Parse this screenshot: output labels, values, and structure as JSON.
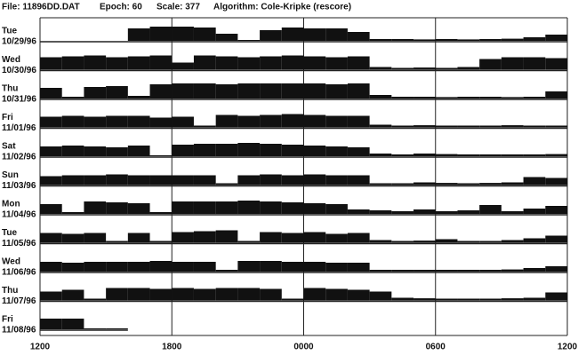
{
  "chart_data": {
    "type": "actogram",
    "header": [
      "File: 11896DD.DAT",
      "Epoch: 60",
      "Scale: 377",
      "Algorithm: Cole-Kripke (rescore)"
    ],
    "xlim": [
      0,
      24
    ],
    "ylim": [
      0,
      100
    ],
    "color": "#111111",
    "xticks": [
      {
        "value": 0,
        "label": "1200"
      },
      {
        "value": 6,
        "label": "1800"
      },
      {
        "value": 12,
        "label": "0000"
      },
      {
        "value": 18,
        "label": "0600"
      },
      {
        "value": 24,
        "label": "1200"
      }
    ],
    "rows": [
      {
        "day": "Tue",
        "date": "10/29/96",
        "values": [
          0,
          0,
          0,
          0,
          70,
          80,
          80,
          75,
          40,
          5,
          60,
          75,
          70,
          70,
          50,
          10,
          10,
          8,
          10,
          8,
          10,
          12,
          20,
          35
        ]
      },
      {
        "day": "Wed",
        "date": "10/30/96",
        "values": [
          70,
          75,
          80,
          70,
          75,
          80,
          40,
          80,
          75,
          70,
          75,
          80,
          75,
          70,
          75,
          15,
          10,
          12,
          10,
          15,
          60,
          70,
          70,
          65
        ]
      },
      {
        "day": "Thu",
        "date": "10/31/96",
        "values": [
          60,
          10,
          65,
          70,
          15,
          80,
          85,
          85,
          80,
          85,
          85,
          85,
          85,
          80,
          85,
          20,
          10,
          10,
          8,
          10,
          10,
          8,
          10,
          40
        ]
      },
      {
        "day": "Fri",
        "date": "11/01/96",
        "values": [
          60,
          65,
          60,
          65,
          65,
          55,
          60,
          10,
          70,
          65,
          70,
          75,
          70,
          65,
          65,
          15,
          10,
          12,
          10,
          10,
          10,
          12,
          10,
          10
        ]
      },
      {
        "day": "Sat",
        "date": "11/02/96",
        "values": [
          55,
          60,
          55,
          50,
          60,
          5,
          65,
          70,
          70,
          75,
          70,
          65,
          60,
          55,
          50,
          15,
          10,
          15,
          12,
          10,
          10,
          10,
          10,
          12
        ]
      },
      {
        "day": "Sun",
        "date": "11/03/96",
        "values": [
          50,
          55,
          55,
          60,
          55,
          55,
          55,
          55,
          10,
          55,
          60,
          55,
          60,
          55,
          55,
          10,
          10,
          15,
          12,
          10,
          12,
          15,
          45,
          40
        ]
      },
      {
        "day": "Mon",
        "date": "11/04/96",
        "values": [
          55,
          10,
          70,
          65,
          60,
          10,
          70,
          70,
          70,
          75,
          70,
          65,
          60,
          55,
          25,
          20,
          15,
          25,
          15,
          20,
          50,
          15,
          30,
          45
        ]
      },
      {
        "day": "Tue",
        "date": "11/05/96",
        "values": [
          55,
          50,
          55,
          10,
          55,
          10,
          60,
          65,
          70,
          10,
          60,
          55,
          60,
          50,
          55,
          15,
          10,
          12,
          20,
          10,
          10,
          15,
          25,
          40
        ]
      },
      {
        "day": "Wed",
        "date": "11/06/96",
        "values": [
          55,
          50,
          55,
          55,
          55,
          60,
          55,
          55,
          10,
          60,
          60,
          55,
          55,
          50,
          50,
          10,
          10,
          10,
          10,
          10,
          10,
          12,
          20,
          30
        ]
      },
      {
        "day": "Thu",
        "date": "11/07/96",
        "values": [
          50,
          60,
          10,
          70,
          70,
          65,
          70,
          65,
          70,
          70,
          65,
          10,
          70,
          65,
          60,
          50,
          15,
          12,
          10,
          10,
          10,
          12,
          15,
          45
        ]
      },
      {
        "day": "Fri",
        "date": "11/08/96",
        "values": [
          60,
          60,
          5,
          5,
          null,
          null,
          null,
          null,
          null,
          null,
          null,
          null,
          null,
          null,
          null,
          null,
          null,
          null,
          null,
          null,
          null,
          null,
          null,
          null
        ]
      }
    ]
  }
}
